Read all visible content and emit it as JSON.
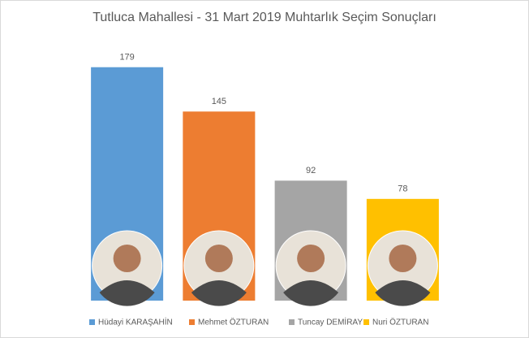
{
  "chart_data": {
    "type": "bar",
    "title": "Tutluca Mahallesi - 31 Mart 2019 Muhtarlık Seçim Sonuçları",
    "categories": [
      "Hüdayi KARAŞAHİN",
      "Mehmet ÖZTURAN",
      "Tuncay DEMİRAY",
      "Nuri ÖZTURAN"
    ],
    "values": [
      179,
      145,
      92,
      78
    ],
    "colors": [
      "#5b9bd5",
      "#ed7d31",
      "#a5a5a5",
      "#ffc000"
    ],
    "ylim": [
      0,
      200
    ]
  }
}
